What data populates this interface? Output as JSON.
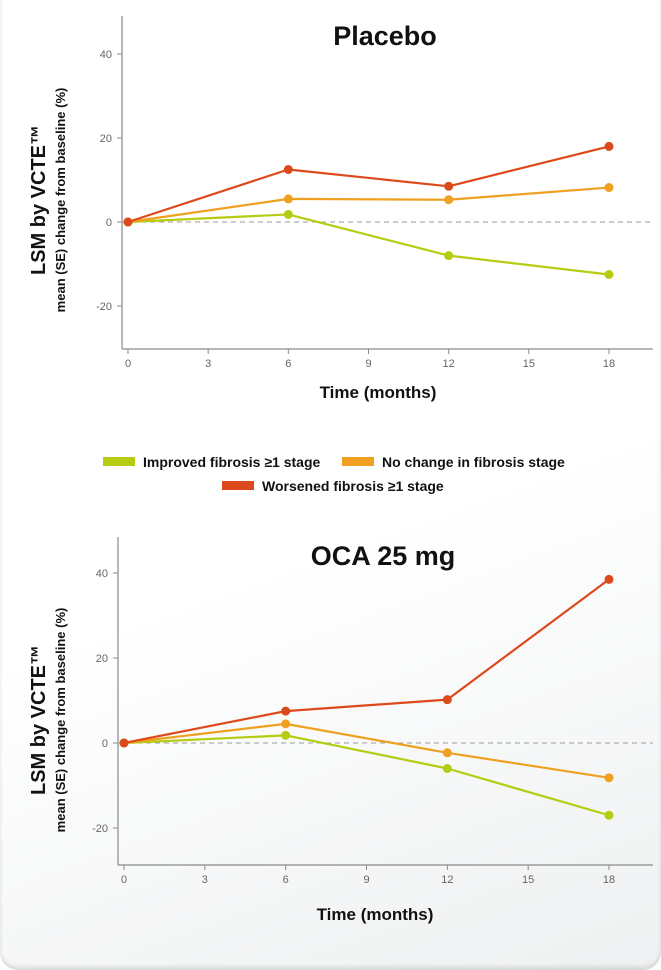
{
  "legend": [
    {
      "label": "Improved fibrosis ≥1 stage",
      "color": "#b5cc12"
    },
    {
      "label": "No change in fibrosis stage",
      "color": "#f0a020"
    },
    {
      "label": "Worsened fibrosis ≥1 stage",
      "color": "#dc4a1c"
    }
  ],
  "chart_data": [
    {
      "type": "line",
      "title": "Placebo",
      "xlabel": "Time (months)",
      "ylabel": "LSM by VCTE™",
      "ylabel_sub": "mean (SE) change from baseline (%)",
      "x_ticks": [
        0,
        3,
        6,
        9,
        12,
        15,
        18
      ],
      "y_ticks": [
        -20,
        0,
        20,
        40
      ],
      "xlim": [
        0,
        19
      ],
      "ylim": [
        -30,
        50
      ],
      "series": [
        {
          "name": "Improved fibrosis ≥1 stage",
          "color": "#b5cc12",
          "x": [
            0,
            6,
            12,
            18
          ],
          "y": [
            0,
            1.8,
            -8,
            -12.5
          ]
        },
        {
          "name": "No change in fibrosis stage",
          "color": "#f0a020",
          "x": [
            0,
            6,
            12,
            18
          ],
          "y": [
            0,
            5.5,
            5.3,
            8.2
          ]
        },
        {
          "name": "Worsened fibrosis ≥1 stage",
          "color": "#dc4a1c",
          "x": [
            0,
            6,
            12,
            18
          ],
          "y": [
            0,
            12.5,
            8.5,
            18
          ]
        }
      ]
    },
    {
      "type": "line",
      "title": "OCA 25 mg",
      "xlabel": "Time (months)",
      "ylabel": "LSM by VCTE™",
      "ylabel_sub": "mean (SE) change from baseline (%)",
      "x_ticks": [
        0,
        3,
        6,
        9,
        12,
        15,
        18
      ],
      "y_ticks": [
        -20,
        0,
        20,
        40
      ],
      "xlim": [
        0,
        19
      ],
      "ylim": [
        -30,
        50
      ],
      "series": [
        {
          "name": "Improved fibrosis ≥1 stage",
          "color": "#b5cc12",
          "x": [
            0,
            6,
            12,
            18
          ],
          "y": [
            0,
            1.8,
            -6,
            -17
          ]
        },
        {
          "name": "No change in fibrosis stage",
          "color": "#f0a020",
          "x": [
            0,
            6,
            12,
            18
          ],
          "y": [
            0,
            4.5,
            -2.3,
            -8.2
          ]
        },
        {
          "name": "Worsened fibrosis ≥1 stage",
          "color": "#dc4a1c",
          "x": [
            0,
            6,
            12,
            18
          ],
          "y": [
            0,
            7.5,
            10.2,
            38.5
          ]
        }
      ]
    }
  ]
}
